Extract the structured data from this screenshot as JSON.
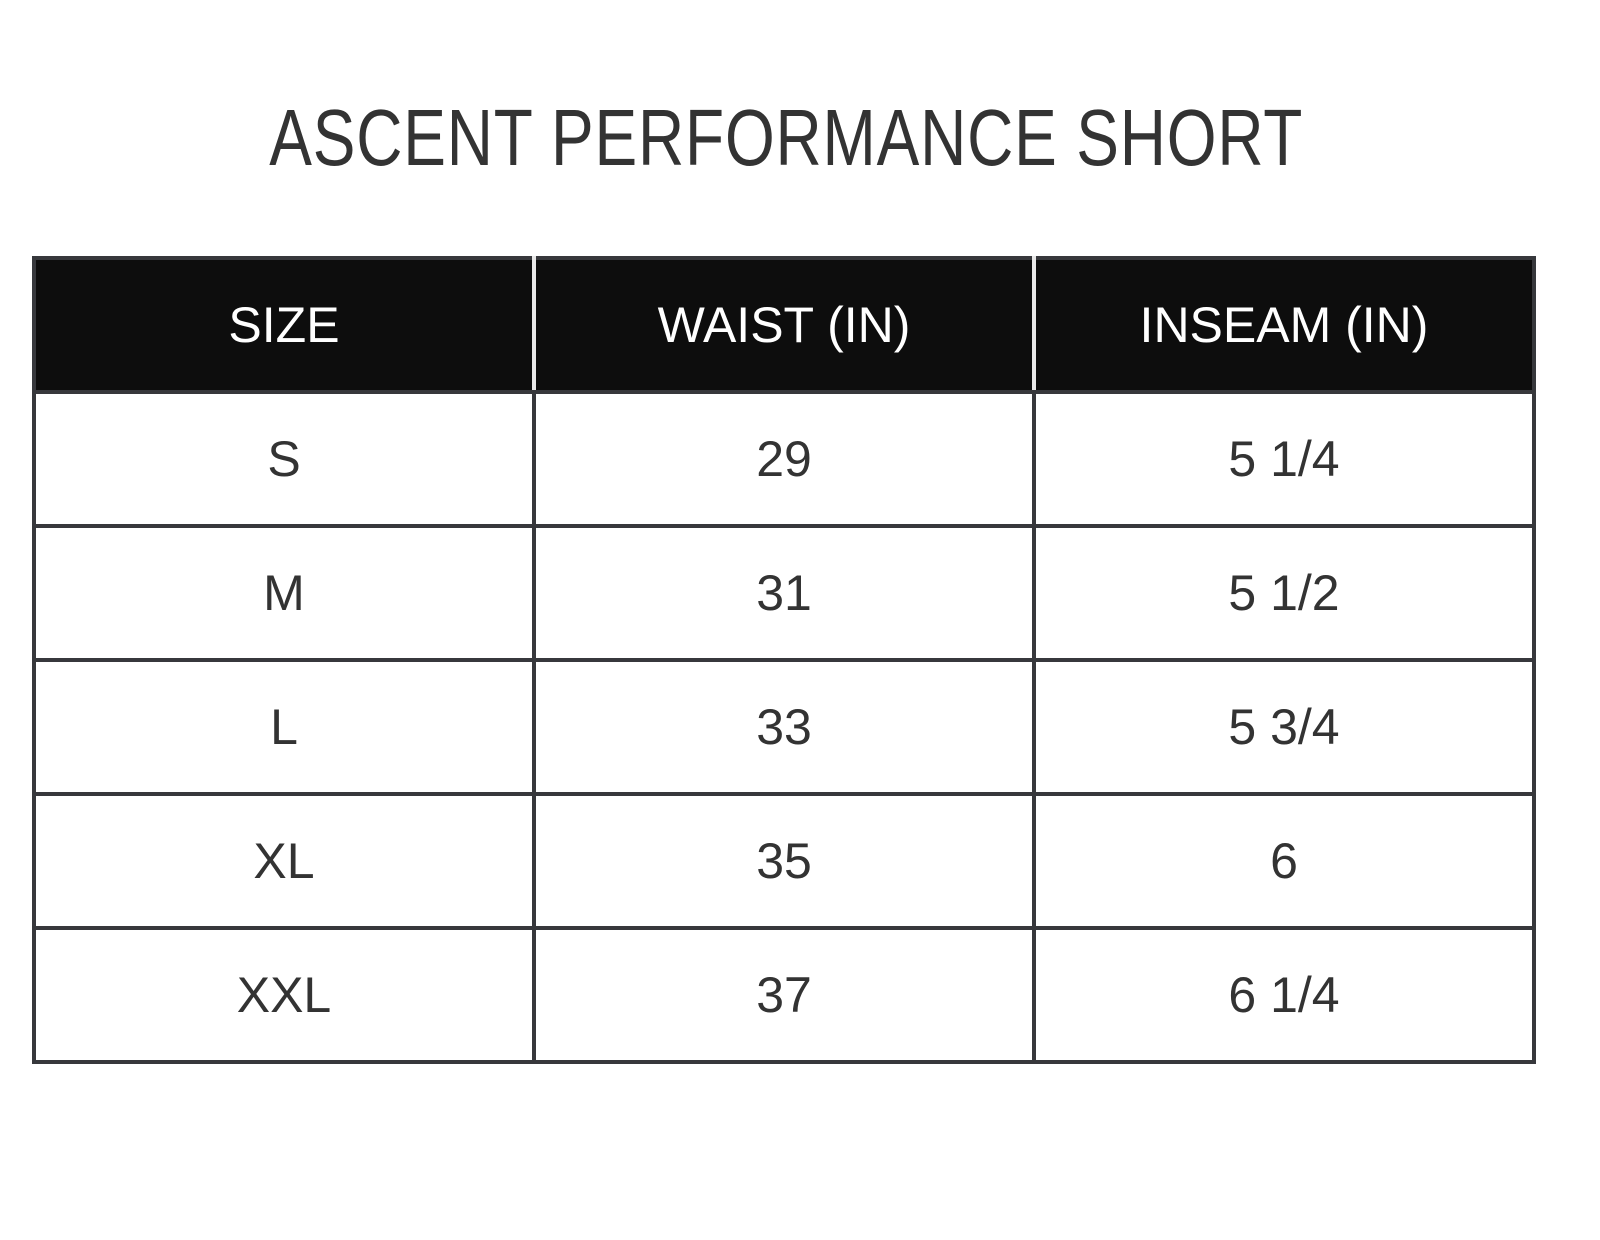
{
  "title": "ASCENT PERFORMANCE SHORT",
  "table": {
    "headers": [
      "SIZE",
      "WAIST (IN)",
      "INSEAM (IN)"
    ],
    "rows": [
      [
        "S",
        "29",
        "5 1/4"
      ],
      [
        "M",
        "31",
        "5 1/2"
      ],
      [
        "L",
        "33",
        "5 3/4"
      ],
      [
        "XL",
        "35",
        "6"
      ],
      [
        "XXL",
        "37",
        "6 1/4"
      ]
    ]
  }
}
